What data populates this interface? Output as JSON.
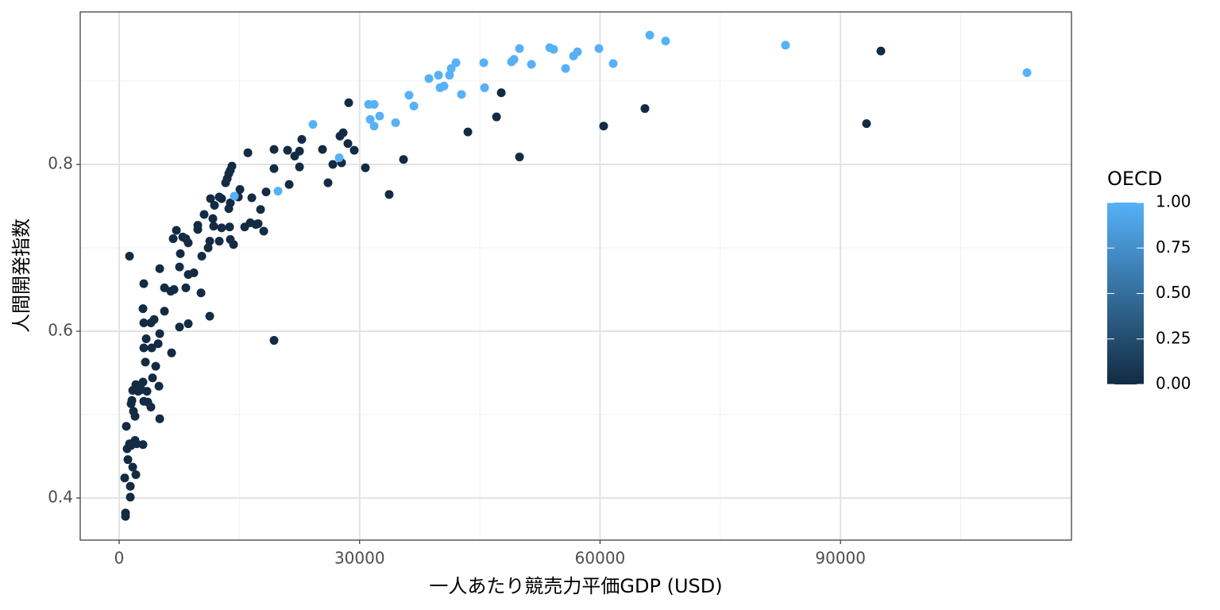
{
  "chart_data": {
    "type": "scatter",
    "x_label": "一人あたり競売力平価GDP (USD)",
    "y_label": "人間開発指数",
    "xlim": [
      -4860,
      118820
    ],
    "ylim": [
      0.3495,
      0.9829
    ],
    "xticks": [
      0,
      30000,
      60000,
      90000
    ],
    "yticks": [
      0.4,
      0.6,
      0.8
    ],
    "x_minor_ticks": [
      15000,
      45000,
      75000,
      105000
    ],
    "y_minor_ticks": [
      0.5,
      0.7,
      0.9
    ],
    "grid": true,
    "x": [
      95040,
      93250,
      65600,
      60450,
      49950,
      47670,
      47080,
      43510,
      35480,
      33690,
      30720,
      28640,
      29330,
      28540,
      27950,
      27550,
      27750,
      26660,
      26060,
      25370,
      22790,
      22500,
      22500,
      21900,
      21010,
      21210,
      19320,
      19320,
      19320,
      18330,
      18040,
      17640,
      17340,
      17050,
      16350,
      16550,
      16060,
      15660,
      15070,
      14870,
      14270,
      13870,
      14070,
      13870,
      13680,
      13480,
      13280,
      13870,
      13680,
      13780,
      12780,
      12490,
      12780,
      12490,
      11890,
      11690,
      11790,
      11400,
      11300,
      11100,
      10600,
      10310,
      10210,
      11300,
      9810,
      9810,
      9320,
      8620,
      8620,
      8320,
      7930,
      8620,
      8320,
      7630,
      7530,
      7530,
      7140,
      6740,
      6840,
      6440,
      6540,
      5650,
      5650,
      5060,
      5060,
      4860,
      4960,
      5060,
      4560,
      4360,
      4060,
      3960,
      4160,
      3960,
      3570,
      3470,
      3370,
      3270,
      3070,
      3070,
      3070,
      2970,
      2970,
      3070,
      2770,
      2970,
      2380,
      2080,
      1980,
      1980,
      2180,
      2080,
      1780,
      1590,
      1690,
      1490,
      1690,
      1490,
      1290,
      1290,
      1390,
      1390,
      1090,
      890,
      990,
      690,
      790,
      790,
      14370,
      24180,
      19820,
      27450,
      31120,
      31810,
      31320,
      31810,
      32500,
      34490,
      36170,
      36770,
      38650,
      39840,
      40040,
      40530,
      41220,
      41430,
      42020,
      42710,
      45490,
      45590,
      48950,
      49260,
      49950,
      51440,
      53720,
      54210,
      55700,
      56690,
      57180,
      59860,
      61640,
      66200,
      68180,
      83140,
      113270
    ],
    "values": [
      0.936,
      0.849,
      0.867,
      0.846,
      0.809,
      0.886,
      0.857,
      0.839,
      0.806,
      0.764,
      0.796,
      0.874,
      0.817,
      0.825,
      0.838,
      0.834,
      0.802,
      0.8,
      0.778,
      0.818,
      0.83,
      0.816,
      0.797,
      0.81,
      0.817,
      0.776,
      0.818,
      0.795,
      0.589,
      0.767,
      0.72,
      0.746,
      0.729,
      0.728,
      0.73,
      0.76,
      0.814,
      0.725,
      0.77,
      0.761,
      0.704,
      0.71,
      0.798,
      0.793,
      0.789,
      0.783,
      0.778,
      0.754,
      0.747,
      0.725,
      0.759,
      0.761,
      0.724,
      0.708,
      0.751,
      0.735,
      0.726,
      0.759,
      0.708,
      0.7,
      0.74,
      0.69,
      0.646,
      0.618,
      0.722,
      0.727,
      0.67,
      0.668,
      0.706,
      0.711,
      0.713,
      0.609,
      0.652,
      0.693,
      0.677,
      0.605,
      0.721,
      0.711,
      0.65,
      0.648,
      0.574,
      0.652,
      0.624,
      0.675,
      0.597,
      0.585,
      0.534,
      0.495,
      0.558,
      0.614,
      0.58,
      0.61,
      0.544,
      0.509,
      0.515,
      0.528,
      0.591,
      0.563,
      0.58,
      0.61,
      0.657,
      0.627,
      0.539,
      0.516,
      0.53,
      0.464,
      0.528,
      0.536,
      0.498,
      0.469,
      0.465,
      0.428,
      0.504,
      0.517,
      0.529,
      0.513,
      0.437,
      0.463,
      0.69,
      0.465,
      0.414,
      0.401,
      0.446,
      0.486,
      0.459,
      0.424,
      0.382,
      0.378,
      0.762,
      0.848,
      0.768,
      0.808,
      0.872,
      0.872,
      0.854,
      0.846,
      0.858,
      0.85,
      0.883,
      0.87,
      0.903,
      0.907,
      0.892,
      0.894,
      0.907,
      0.915,
      0.922,
      0.884,
      0.922,
      0.892,
      0.923,
      0.926,
      0.939,
      0.92,
      0.94,
      0.938,
      0.915,
      0.93,
      0.935,
      0.939,
      0.921,
      0.955,
      0.948,
      0.943,
      0.91
    ],
    "oecd": [
      0,
      0,
      0,
      0,
      0,
      0,
      0,
      0,
      0,
      0,
      0,
      0,
      0,
      0,
      0,
      0,
      0,
      0,
      0,
      0,
      0,
      0,
      0,
      0,
      0,
      0,
      0,
      0,
      0,
      0,
      0,
      0,
      0,
      0,
      0,
      0,
      0,
      0,
      0,
      0,
      0,
      0,
      0,
      0,
      0,
      0,
      0,
      0,
      0,
      0,
      0,
      0,
      0,
      0,
      0,
      0,
      0,
      0,
      0,
      0,
      0,
      0,
      0,
      0,
      0,
      0,
      0,
      0,
      0,
      0,
      0,
      0,
      0,
      0,
      0,
      0,
      0,
      0,
      0,
      0,
      0,
      0,
      0,
      0,
      0,
      0,
      0,
      0,
      0,
      0,
      0,
      0,
      0,
      0,
      0,
      0,
      0,
      0,
      0,
      0,
      0,
      0,
      0,
      0,
      0,
      0,
      0,
      0,
      0,
      0,
      0,
      0,
      0,
      0,
      0,
      0,
      0,
      0,
      0,
      0,
      0,
      0,
      0,
      0,
      0,
      0,
      0,
      0,
      1,
      1,
      1,
      1,
      1,
      1,
      1,
      1,
      1,
      1,
      1,
      1,
      1,
      1,
      1,
      1,
      1,
      1,
      1,
      1,
      1,
      1,
      1,
      1,
      1,
      1,
      1,
      1,
      1,
      1,
      1,
      1,
      1,
      1,
      1,
      1,
      1
    ],
    "legend": {
      "title": "OECD",
      "position": "right",
      "low_color": "#132B43",
      "high_color": "#56B1F7",
      "limits": [
        0,
        1
      ],
      "ticks": [
        {
          "value": 0,
          "label": "0.00"
        },
        {
          "value": 0.25,
          "label": "0.25"
        },
        {
          "value": 0.5,
          "label": "0.50"
        },
        {
          "value": 0.75,
          "label": "0.75"
        },
        {
          "value": 1,
          "label": "1.00"
        }
      ]
    }
  }
}
